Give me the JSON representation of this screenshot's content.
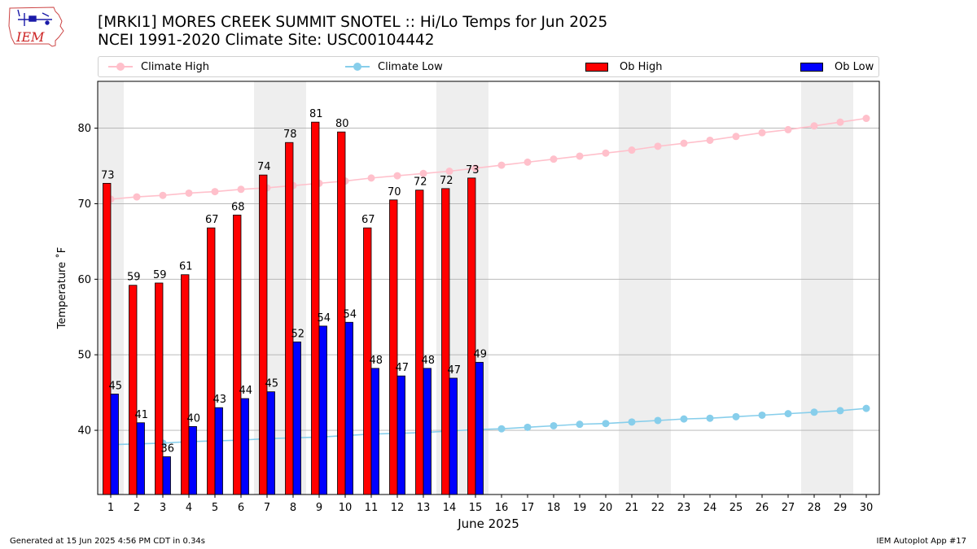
{
  "logo": {
    "text": "IEM"
  },
  "title_line1": "[MRKI1] MORES CREEK SUMMIT SNOTEL :: Hi/Lo Temps for Jun 2025",
  "title_line2": "NCEI 1991-2020 Climate Site: USC00104442",
  "legend": {
    "climate_high": "Climate High",
    "climate_low": "Climate Low",
    "ob_high": "Ob High",
    "ob_low": "Ob Low"
  },
  "colors": {
    "climate_high": "#ffc0cb",
    "climate_low": "#87ceeb",
    "ob_high": "#ff0000",
    "ob_low": "#0000ff",
    "weekend_shade": "#eeeeee",
    "grid": "#b0b0b0"
  },
  "chart_data": {
    "type": "bar",
    "xlabel": "June 2025",
    "ylabel": "Temperature ˚F",
    "ylim": [
      31.5,
      86.2
    ],
    "yticks": [
      40,
      50,
      60,
      70,
      80
    ],
    "grid": "horizontal",
    "legend_position": "top",
    "categories": [
      "1",
      "2",
      "3",
      "4",
      "5",
      "6",
      "7",
      "8",
      "9",
      "10",
      "11",
      "12",
      "13",
      "14",
      "15",
      "16",
      "17",
      "18",
      "19",
      "20",
      "21",
      "22",
      "23",
      "24",
      "25",
      "26",
      "27",
      "28",
      "29",
      "30"
    ],
    "weekend_days": [
      1,
      7,
      8,
      14,
      15,
      21,
      22,
      28,
      29
    ],
    "ob_high": [
      72.7,
      59.2,
      59.5,
      60.6,
      66.8,
      68.5,
      73.8,
      78.1,
      80.8,
      79.5,
      66.8,
      70.5,
      71.8,
      72.0,
      73.4
    ],
    "ob_high_labels": [
      "73",
      "59",
      "59",
      "61",
      "67",
      "68",
      "74",
      "78",
      "81",
      "80",
      "67",
      "70",
      "72",
      "72",
      "73"
    ],
    "ob_low": [
      44.8,
      41.0,
      36.5,
      40.5,
      43.0,
      44.2,
      45.1,
      51.7,
      53.8,
      54.3,
      48.2,
      47.2,
      48.2,
      46.9,
      49.0
    ],
    "ob_low_labels": [
      "45",
      "41",
      "36",
      "40",
      "43",
      "44",
      "45",
      "52",
      "54",
      "54",
      "48",
      "47",
      "48",
      "47",
      "49"
    ],
    "climate_high": [
      70.6,
      70.9,
      71.1,
      71.4,
      71.6,
      71.9,
      72.1,
      72.4,
      72.7,
      73.0,
      73.4,
      73.7,
      74.0,
      74.3,
      74.7,
      75.1,
      75.5,
      75.9,
      76.3,
      76.7,
      77.1,
      77.6,
      78.0,
      78.4,
      78.9,
      79.4,
      79.8,
      80.3,
      80.8,
      81.3
    ],
    "climate_low": [
      38.1,
      38.2,
      38.3,
      38.5,
      38.6,
      38.7,
      38.9,
      39.0,
      39.1,
      39.3,
      39.5,
      39.6,
      39.7,
      39.9,
      40.1,
      40.2,
      40.4,
      40.6,
      40.8,
      40.9,
      41.1,
      41.3,
      41.5,
      41.6,
      41.8,
      42.0,
      42.2,
      42.4,
      42.6,
      42.9
    ]
  },
  "footer_left": "Generated at 15 Jun 2025 4:56 PM CDT in 0.34s",
  "footer_right": "IEM Autoplot App #17"
}
